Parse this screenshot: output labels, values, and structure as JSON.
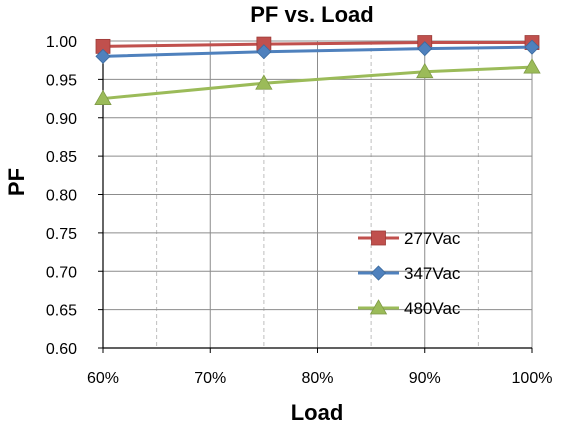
{
  "chart_data": {
    "type": "line",
    "title": "PF vs. Load",
    "xlabel": "Load",
    "ylabel": "PF",
    "x": [
      0.6,
      0.75,
      0.9,
      1.0
    ],
    "xlim": [
      0.6,
      1.0
    ],
    "ylim": [
      0.6,
      1.0
    ],
    "xticks": [
      "60%",
      "70%",
      "80%",
      "90%",
      "100%"
    ],
    "xtick_values": [
      0.6,
      0.7,
      0.8,
      0.9,
      1.0
    ],
    "yticks": [
      "0.60",
      "0.65",
      "0.70",
      "0.75",
      "0.80",
      "0.85",
      "0.90",
      "0.95",
      "1.00"
    ],
    "ytick_values": [
      0.6,
      0.65,
      0.7,
      0.75,
      0.8,
      0.85,
      0.9,
      0.95,
      1.0
    ],
    "grid": true,
    "legend_position": "bottom-right",
    "series": [
      {
        "name": "277Vac",
        "values": [
          0.993,
          0.996,
          0.998,
          0.998
        ],
        "color": "#C0504D",
        "marker": "square"
      },
      {
        "name": "347Vac",
        "values": [
          0.98,
          0.986,
          0.99,
          0.992
        ],
        "color": "#4F81BD",
        "marker": "diamond"
      },
      {
        "name": "480Vac",
        "values": [
          0.925,
          0.945,
          0.96,
          0.966
        ],
        "color": "#9BBB59",
        "marker": "triangle"
      }
    ]
  }
}
